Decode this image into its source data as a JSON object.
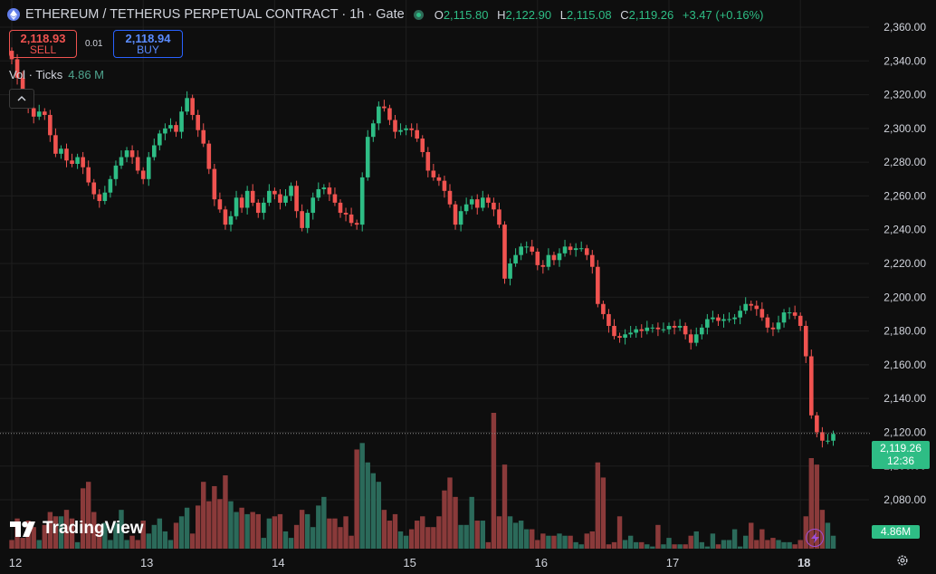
{
  "header": {
    "title": "ETHEREUM / TETHERUS PERPETUAL CONTRACT · 1h · Gate",
    "open_key": "O",
    "open": "2,115.80",
    "high_key": "H",
    "high": "2,122.90",
    "low_key": "L",
    "low": "2,115.08",
    "close_key": "C",
    "close": "2,119.26",
    "change": "+3.47 (+0.16%)"
  },
  "trade": {
    "sell_price": "2,118.93",
    "sell_label": "SELL",
    "spread": "0.01",
    "buy_price": "2,118.94",
    "buy_label": "BUY"
  },
  "volume_legend": {
    "label": "Vol · Ticks",
    "value": "4.86 M"
  },
  "price_label": {
    "price": "2,119.26",
    "countdown": "12:36"
  },
  "volume_label": "4.86M",
  "branding": "TradingView",
  "colors": {
    "up": "#2ebd85",
    "down": "#f05350",
    "vol_up": "#2b6a5a",
    "vol_down": "#8a3a3a",
    "background": "#0e0e0e",
    "grid": "#1e1e1e"
  },
  "chart_data": {
    "type": "candlestick",
    "title": "ETHEREUM / TETHERUS PERPETUAL CONTRACT · 1h · Gate",
    "y_axis": {
      "range": [
        2070,
        2362
      ],
      "ticks": [
        2360,
        2340,
        2320,
        2300,
        2280,
        2260,
        2240,
        2220,
        2200,
        2180,
        2160,
        2140,
        2120,
        2100,
        2080
      ],
      "tick_labels": [
        "2,360.00",
        "2,340.00",
        "2,320.00",
        "2,300.00",
        "2,280.00",
        "2,260.00",
        "2,240.00",
        "2,220.00",
        "2,200.00",
        "2,180.00",
        "2,160.00",
        "2,140.00",
        "2,120.00",
        "2,100.00",
        "2,080.00"
      ]
    },
    "x_axis": {
      "labels": [
        "12",
        "13",
        "14",
        "15",
        "16",
        "17",
        "18"
      ],
      "label_candle_index": [
        0,
        24,
        48,
        72,
        96,
        120,
        144
      ]
    },
    "last_price": 2119.26,
    "close": [
      2341,
      2330,
      2318,
      2312,
      2307,
      2310,
      2308,
      2296,
      2285,
      2288,
      2281,
      2279,
      2283,
      2277,
      2268,
      2261,
      2257,
      2262,
      2270,
      2278,
      2283,
      2287,
      2283,
      2275,
      2270,
      2283,
      2290,
      2297,
      2300,
      2302,
      2298,
      2310,
      2318,
      2308,
      2299,
      2291,
      2276,
      2258,
      2252,
      2243,
      2248,
      2259,
      2253,
      2263,
      2256,
      2250,
      2256,
      2263,
      2261,
      2256,
      2260,
      2266,
      2251,
      2241,
      2250,
      2259,
      2264,
      2265,
      2261,
      2256,
      2250,
      2249,
      2244,
      2243,
      2271,
      2295,
      2303,
      2313,
      2312,
      2305,
      2298,
      2299,
      2300,
      2299,
      2294,
      2286,
      2275,
      2271,
      2269,
      2263,
      2255,
      2243,
      2251,
      2255,
      2258,
      2253,
      2259,
      2256,
      2252,
      2243,
      2211,
      2220,
      2225,
      2230,
      2230,
      2227,
      2219,
      2218,
      2225,
      2222,
      2226,
      2230,
      2228,
      2229,
      2229,
      2225,
      2218,
      2196,
      2190,
      2183,
      2177,
      2176,
      2178,
      2179,
      2181,
      2180,
      2182,
      2182,
      2181,
      2181,
      2183,
      2182,
      2183,
      2178,
      2173,
      2178,
      2182,
      2187,
      2188,
      2186,
      2187,
      2187,
      2188,
      2192,
      2196,
      2195,
      2193,
      2188,
      2182,
      2181,
      2185,
      2191,
      2191,
      2189,
      2183,
      2165,
      2130,
      2120,
      2115,
      2115,
      2119
    ],
    "volume_ticks": [
      0.4,
      1.4,
      0.5,
      1.3,
      1.0,
      0.4,
      1.1,
      1.7,
      1.5,
      1.5,
      1.8,
      1.4,
      0.3,
      2.8,
      3.1,
      1.7,
      1.1,
      1.2,
      0.4,
      1.2,
      1.8,
      0.4,
      0.6,
      0.4,
      1.3,
      0.7,
      1.1,
      1.4,
      0.8,
      0.4,
      1.2,
      1.5,
      1.9,
      0.7,
      2.0,
      3.1,
      2.2,
      2.9,
      2.3,
      3.4,
      2.2,
      1.7,
      1.9,
      1.6,
      1.7,
      1.6,
      0.5,
      1.4,
      1.5,
      1.6,
      0.8,
      0.5,
      1.1,
      1.8,
      1.6,
      1.0,
      2.0,
      2.4,
      1.4,
      1.4,
      1.0,
      1.5,
      0.6,
      4.6,
      4.9,
      4.0,
      3.5,
      3.1,
      1.8,
      1.3,
      1.6,
      0.8,
      0.6,
      0.9,
      1.3,
      1.5,
      1.0,
      1.0,
      1.5,
      2.7,
      3.3,
      2.4,
      1.1,
      1.1,
      2.4,
      1.3,
      1.3,
      0.3,
      6.3,
      1.5,
      3.9,
      1.5,
      1.2,
      1.3,
      0.9,
      0.9,
      0.4,
      0.7,
      0.6,
      0.6,
      0.7,
      0.6,
      0.6,
      0.3,
      0.2,
      0.7,
      0.8,
      4.0,
      3.3,
      0.2,
      0.3,
      1.5,
      0.4,
      0.6,
      0.3,
      0.3,
      0.2,
      0.1,
      1.1,
      0.2,
      0.5,
      0.2,
      0.2,
      0.2,
      0.6,
      0.8,
      0.3,
      0.1,
      0.7,
      0.2,
      0.4,
      0.4,
      0.9,
      0.1,
      0.6,
      1.2,
      0.4,
      0.9,
      0.4,
      0.5,
      0.4,
      0.3,
      0.3,
      0.2,
      0.4,
      1.5,
      4.2,
      3.9,
      1.8,
      1.2,
      0.6
    ]
  }
}
